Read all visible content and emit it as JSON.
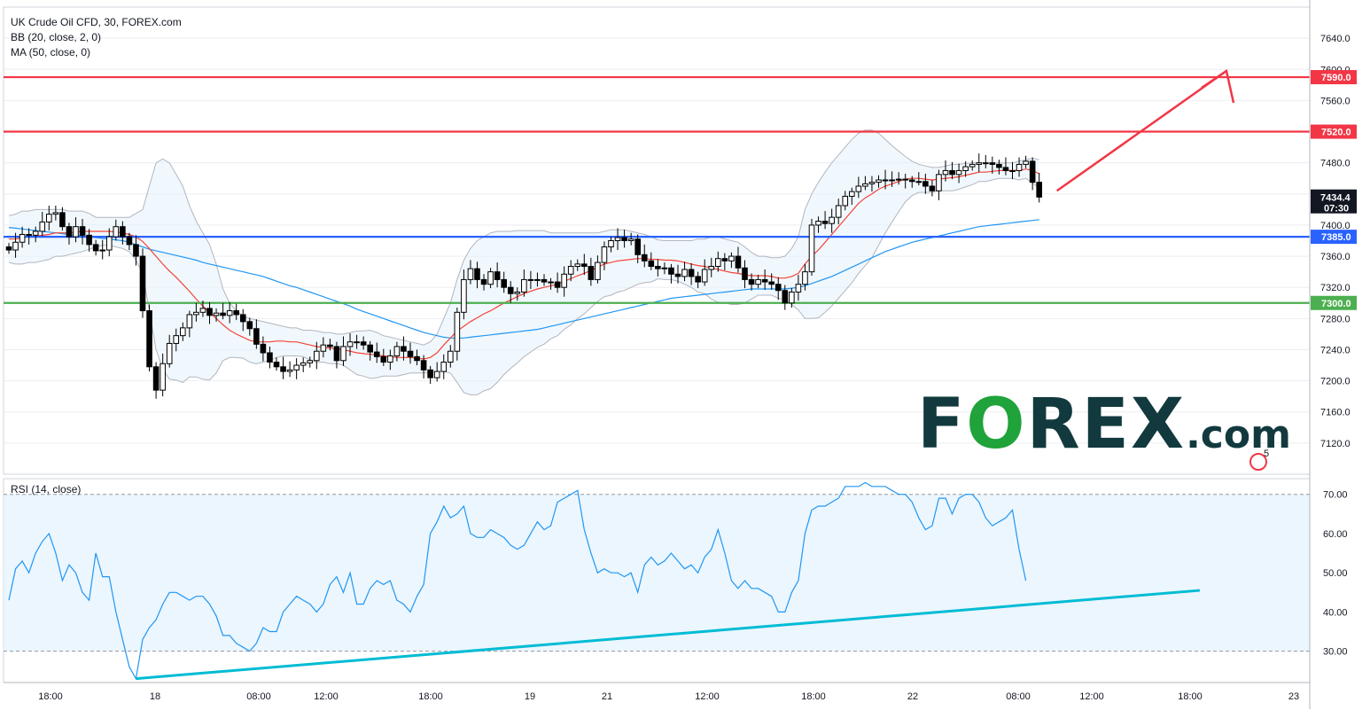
{
  "legend": {
    "title": "UK Crude Oil CFD, 30, FOREX.com",
    "bb": "BB (20, close, 2, 0)",
    "ma": "MA (50, close, 0)"
  },
  "rsi_legend": "RSI (14, close)",
  "price_tag": {
    "value": "7434.4",
    "countdown": "07:30"
  },
  "logo": {
    "f": "F",
    "o": "O",
    "rest": "REX",
    "dotcom": ".com"
  },
  "badges": {
    "events": "5"
  },
  "colors": {
    "resistance": "#f23645",
    "support_blue": "#2962ff",
    "support_green": "#4caf50",
    "ma_line": "#2196f3",
    "bb_basis": "#f44336",
    "trendline": "#00bcd4",
    "arrow": "#f23645",
    "rsi_line": "#2196f3",
    "candle_down": "#000000",
    "candle_up": "#ffffff"
  },
  "chart_data": [
    {
      "type": "candlestick",
      "title": "UK Crude Oil CFD, 30, FOREX.com",
      "ylim": [
        7080,
        7680
      ],
      "y_ticks": [
        "7120.0",
        "7160.0",
        "7200.0",
        "7240.0",
        "7280.0",
        "7320.0",
        "7360.0",
        "7400.0",
        "7440.0",
        "7480.0",
        "7520.0",
        "7560.0",
        "7600.0",
        "7640.0"
      ],
      "x_ticks": [
        "18:00",
        "18",
        "08:00",
        "12:00",
        "18:00",
        "19",
        "21",
        "12:00",
        "18:00",
        "22",
        "08:00",
        "12:00",
        "18:00",
        "23"
      ],
      "horizontal_levels": [
        {
          "value": 7590.0,
          "label": "7590.0",
          "color": "#f23645"
        },
        {
          "value": 7520.0,
          "label": "7520.0",
          "color": "#f23645"
        },
        {
          "value": 7385.0,
          "label": "7385.0",
          "color": "#2962ff"
        },
        {
          "value": 7300.0,
          "label": "7300.0",
          "color": "#4caf50"
        }
      ],
      "close": [
        7368,
        7378,
        7388,
        7387,
        7392,
        7404,
        7414,
        7416,
        7398,
        7385,
        7398,
        7387,
        7375,
        7367,
        7368,
        7385,
        7398,
        7385,
        7375,
        7360,
        7290,
        7218,
        7188,
        7222,
        7248,
        7258,
        7268,
        7285,
        7288,
        7293,
        7284,
        7287,
        7284,
        7290,
        7285,
        7276,
        7267,
        7247,
        7236,
        7224,
        7218,
        7212,
        7214,
        7220,
        7223,
        7226,
        7238,
        7246,
        7244,
        7226,
        7244,
        7250,
        7250,
        7246,
        7237,
        7231,
        7224,
        7232,
        7244,
        7238,
        7231,
        7226,
        7214,
        7204,
        7212,
        7224,
        7238,
        7288,
        7330,
        7344,
        7330,
        7324,
        7340,
        7330,
        7320,
        7312,
        7314,
        7330,
        7329,
        7330,
        7327,
        7327,
        7320,
        7337,
        7347,
        7350,
        7347,
        7330,
        7352,
        7372,
        7380,
        7384,
        7380,
        7382,
        7362,
        7354,
        7347,
        7344,
        7345,
        7337,
        7334,
        7343,
        7334,
        7327,
        7343,
        7347,
        7357,
        7354,
        7360,
        7345,
        7330,
        7324,
        7330,
        7327,
        7324,
        7316,
        7300,
        7314,
        7324,
        7340,
        7400,
        7405,
        7402,
        7410,
        7425,
        7437,
        7443,
        7450,
        7453,
        7455,
        7458,
        7458,
        7458,
        7459,
        7458,
        7456,
        7456,
        7450,
        7444,
        7465,
        7470,
        7465,
        7470,
        7475,
        7478,
        7480,
        7480,
        7478,
        7474,
        7470,
        7470,
        7478,
        7482,
        7455,
        7436
      ],
      "bb_upper": [
        7412,
        7414,
        7418,
        7418,
        7420,
        7420,
        7420,
        7420,
        7420,
        7418,
        7418,
        7418,
        7415,
        7410,
        7410,
        7410,
        7410,
        7410,
        7410,
        7415,
        7420,
        7450,
        7480,
        7485,
        7480,
        7465,
        7450,
        7425,
        7405,
        7390,
        7375,
        7350,
        7318,
        7300,
        7290,
        7283,
        7280,
        7278,
        7276,
        7274,
        7272,
        7270,
        7268,
        7268,
        7265,
        7265,
        7264,
        7262,
        7262,
        7260,
        7260,
        7262,
        7264,
        7264,
        7265,
        7262,
        7258,
        7256,
        7254,
        7252,
        7250,
        7248,
        7246,
        7250,
        7260,
        7280,
        7300,
        7330,
        7355,
        7370,
        7380,
        7385,
        7390,
        7392,
        7392,
        7392,
        7393,
        7393,
        7393,
        7393,
        7393,
        7390,
        7390,
        7390,
        7390,
        7390,
        7390,
        7390,
        7390,
        7392,
        7394,
        7394,
        7394,
        7392,
        7390,
        7388,
        7385,
        7381,
        7380,
        7380,
        7380,
        7380,
        7380,
        7382,
        7382,
        7385,
        7385,
        7382,
        7380,
        7378,
        7372,
        7365,
        7360,
        7360,
        7358,
        7358,
        7360,
        7370,
        7385,
        7420,
        7440,
        7455,
        7468,
        7480,
        7490,
        7500,
        7510,
        7518,
        7522,
        7522,
        7518,
        7510,
        7502,
        7495,
        7488,
        7482,
        7478,
        7476,
        7474,
        7474,
        7476,
        7478,
        7478,
        7479,
        7480,
        7480,
        7480,
        7480,
        7480,
        7480,
        7480,
        7482,
        7484,
        7486,
        7484
      ],
      "bb_basis": [
        7382,
        7382,
        7384,
        7385,
        7386,
        7387,
        7388,
        7390,
        7390,
        7390,
        7391,
        7392,
        7392,
        7392,
        7392,
        7392,
        7391,
        7390,
        7388,
        7385,
        7379,
        7370,
        7360,
        7350,
        7341,
        7333,
        7324,
        7315,
        7305,
        7296,
        7288,
        7280,
        7272,
        7265,
        7260,
        7256,
        7252,
        7250,
        7250,
        7250,
        7251,
        7251,
        7250,
        7250,
        7248,
        7246,
        7244,
        7243,
        7242,
        7241,
        7240,
        7238,
        7236,
        7235,
        7234,
        7233,
        7232,
        7231,
        7230,
        7230,
        7230,
        7229,
        7228,
        7230,
        7236,
        7246,
        7255,
        7264,
        7270,
        7276,
        7281,
        7286,
        7290,
        7295,
        7300,
        7304,
        7308,
        7312,
        7315,
        7318,
        7320,
        7322,
        7324,
        7328,
        7331,
        7335,
        7338,
        7342,
        7346,
        7350,
        7352,
        7354,
        7355,
        7356,
        7357,
        7357,
        7356,
        7356,
        7355,
        7355,
        7354,
        7352,
        7350,
        7348,
        7347,
        7345,
        7343,
        7341,
        7339,
        7338,
        7336,
        7335,
        7335,
        7335,
        7334,
        7332,
        7332,
        7334,
        7338,
        7350,
        7360,
        7368,
        7378,
        7388,
        7398,
        7408,
        7418,
        7428,
        7435,
        7440,
        7446,
        7450,
        7453,
        7456,
        7459,
        7460,
        7460,
        7459,
        7458,
        7459,
        7460,
        7461,
        7462,
        7464,
        7466,
        7468,
        7468,
        7469,
        7470,
        7470,
        7470,
        7470,
        7472,
        7470,
        7466
      ],
      "bb_lower": [
        7352,
        7350,
        7350,
        7352,
        7352,
        7354,
        7356,
        7360,
        7360,
        7362,
        7364,
        7366,
        7369,
        7372,
        7374,
        7374,
        7372,
        7370,
        7366,
        7355,
        7338,
        7290,
        7240,
        7215,
        7202,
        7201,
        7198,
        7205,
        7205,
        7202,
        7201,
        7210,
        7226,
        7230,
        7230,
        7229,
        7224,
        7222,
        7224,
        7226,
        7230,
        7232,
        7232,
        7232,
        7231,
        7227,
        7224,
        7224,
        7222,
        7222,
        7220,
        7214,
        7208,
        7206,
        7203,
        7204,
        7206,
        7206,
        7206,
        7208,
        7210,
        7210,
        7210,
        7210,
        7212,
        7212,
        7210,
        7198,
        7185,
        7182,
        7182,
        7187,
        7190,
        7198,
        7208,
        7216,
        7223,
        7231,
        7237,
        7243,
        7247,
        7254,
        7258,
        7266,
        7272,
        7280,
        7286,
        7294,
        7302,
        7308,
        7310,
        7314,
        7316,
        7320,
        7324,
        7326,
        7327,
        7331,
        7330,
        7330,
        7328,
        7324,
        7320,
        7314,
        7312,
        7305,
        7301,
        7300,
        7298,
        7298,
        7300,
        7305,
        7310,
        7310,
        7310,
        7306,
        7304,
        7298,
        7291,
        7280,
        7280,
        7281,
        7288,
        7296,
        7306,
        7316,
        7326,
        7338,
        7348,
        7358,
        7374,
        7390,
        7404,
        7417,
        7430,
        7438,
        7442,
        7442,
        7442,
        7444,
        7444,
        7444,
        7446,
        7449,
        7452,
        7456,
        7456,
        7458,
        7460,
        7460,
        7460,
        7458,
        7460,
        7454,
        7448
      ],
      "ma50": [
        7397,
        7396,
        7395,
        7394,
        7393,
        7392,
        7391,
        7390,
        7389,
        7388,
        7387,
        7386,
        7385,
        7384,
        7383,
        7382,
        7381,
        7380,
        7378,
        7375,
        7372,
        7369,
        7367,
        7365,
        7363,
        7361,
        7359,
        7357,
        7355,
        7352,
        7350,
        7348,
        7346,
        7344,
        7342,
        7340,
        7338,
        7336,
        7334,
        7331,
        7328,
        7325,
        7322,
        7320,
        7317,
        7314,
        7311,
        7308,
        7305,
        7302,
        7299,
        7296,
        7292,
        7289,
        7286,
        7283,
        7280,
        7277,
        7274,
        7271,
        7268,
        7265,
        7262,
        7260,
        7258,
        7256,
        7255,
        7255,
        7255,
        7256,
        7257,
        7258,
        7259,
        7260,
        7261,
        7262,
        7263,
        7264,
        7265,
        7266,
        7268,
        7270,
        7272,
        7274,
        7276,
        7278,
        7280,
        7282,
        7284,
        7286,
        7288,
        7290,
        7292,
        7294,
        7296,
        7298,
        7300,
        7302,
        7304,
        7306,
        7307,
        7308,
        7309,
        7310,
        7311,
        7312,
        7313,
        7314,
        7315,
        7316,
        7317,
        7318,
        7318,
        7318,
        7318,
        7318,
        7318,
        7319,
        7320,
        7322,
        7325,
        7328,
        7331,
        7334,
        7338,
        7342,
        7346,
        7350,
        7354,
        7358,
        7362,
        7366,
        7369,
        7372,
        7375,
        7378,
        7380,
        7382,
        7384,
        7386,
        7388,
        7390,
        7392,
        7394,
        7396,
        7398,
        7399,
        7400,
        7401,
        7402,
        7403,
        7404,
        7405,
        7406,
        7407
      ]
    },
    {
      "type": "line",
      "title": "RSI (14, close)",
      "ylim": [
        22,
        74
      ],
      "y_ticks": [
        "30.00",
        "40.00",
        "50.00",
        "60.00",
        "70.00"
      ],
      "band": [
        30,
        70
      ],
      "values": [
        43,
        51,
        53,
        50,
        55,
        58,
        60,
        55,
        48,
        52,
        50,
        45,
        43,
        55,
        49,
        49,
        40,
        33,
        26,
        23,
        33,
        36,
        38,
        42,
        45,
        45,
        44,
        43,
        44,
        44,
        42,
        39,
        34,
        34,
        32,
        31,
        30,
        32,
        36,
        35,
        35,
        40,
        42,
        44,
        43,
        42,
        40,
        42,
        47,
        49,
        45,
        50,
        42,
        42,
        46,
        48,
        47,
        48,
        43,
        42,
        40,
        44,
        47,
        60,
        63,
        67,
        64,
        65,
        67,
        60,
        59,
        59,
        61,
        60,
        59,
        57,
        56,
        57,
        60,
        63,
        61,
        62,
        68,
        69,
        70,
        71,
        61,
        55,
        50,
        51,
        50,
        50,
        49,
        50,
        45,
        52,
        54,
        52,
        53,
        55,
        53,
        51,
        52,
        50,
        54,
        56,
        61,
        55,
        48,
        46,
        48,
        46,
        46,
        45,
        44,
        40,
        40,
        45,
        48,
        60,
        66,
        67,
        67,
        68,
        69,
        72,
        72,
        72,
        73,
        72,
        72,
        72,
        71,
        70,
        70,
        68,
        64,
        61,
        62,
        69,
        69,
        65,
        69,
        70,
        70,
        68,
        64,
        62,
        63,
        64,
        66,
        56,
        48
      ],
      "trendlines": [
        {
          "from_index": 19,
          "from_value": 23,
          "to_index": 178,
          "to_value": 45.5,
          "color": "#00bcd4"
        }
      ]
    }
  ]
}
